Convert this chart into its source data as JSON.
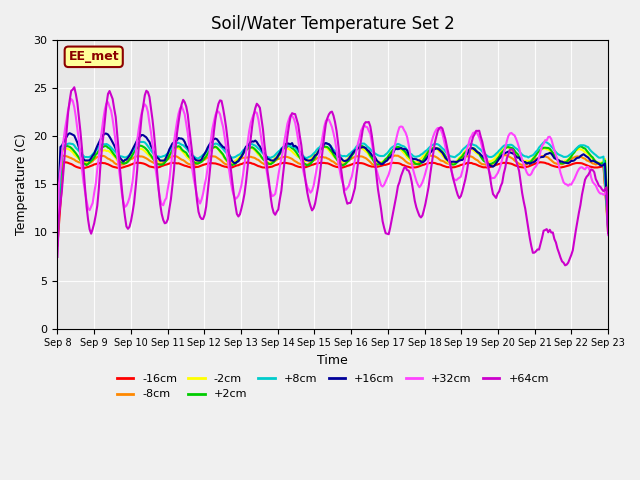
{
  "title": "Soil/Water Temperature Set 2",
  "xlabel": "Time",
  "ylabel": "Temperature (C)",
  "ylim": [
    0,
    30
  ],
  "annotation_text": "EE_met",
  "annotation_color": "#8B0000",
  "annotation_bg": "#FFFF99",
  "series": {
    "-16cm": {
      "color": "#FF0000",
      "lw": 1.5
    },
    "-8cm": {
      "color": "#FF8800",
      "lw": 1.5
    },
    "-2cm": {
      "color": "#FFFF00",
      "lw": 1.5
    },
    "+2cm": {
      "color": "#00CC00",
      "lw": 1.5
    },
    "+8cm": {
      "color": "#00CCCC",
      "lw": 1.5
    },
    "+16cm": {
      "color": "#000099",
      "lw": 1.5
    },
    "+32cm": {
      "color": "#FF44FF",
      "lw": 1.5
    },
    "+64cm": {
      "color": "#CC00CC",
      "lw": 1.5
    }
  },
  "tick_dates": [
    "Sep 8",
    "Sep 9",
    "Sep 10",
    "Sep 11",
    "Sep 12",
    "Sep 13",
    "Sep 14",
    "Sep 15",
    "Sep 16",
    "Sep 17",
    "Sep 18",
    "Sep 19",
    "Sep 20",
    "Sep 21",
    "Sep 22",
    "Sep 23"
  ],
  "yticks": [
    0,
    5,
    10,
    15,
    20,
    25,
    30
  ]
}
